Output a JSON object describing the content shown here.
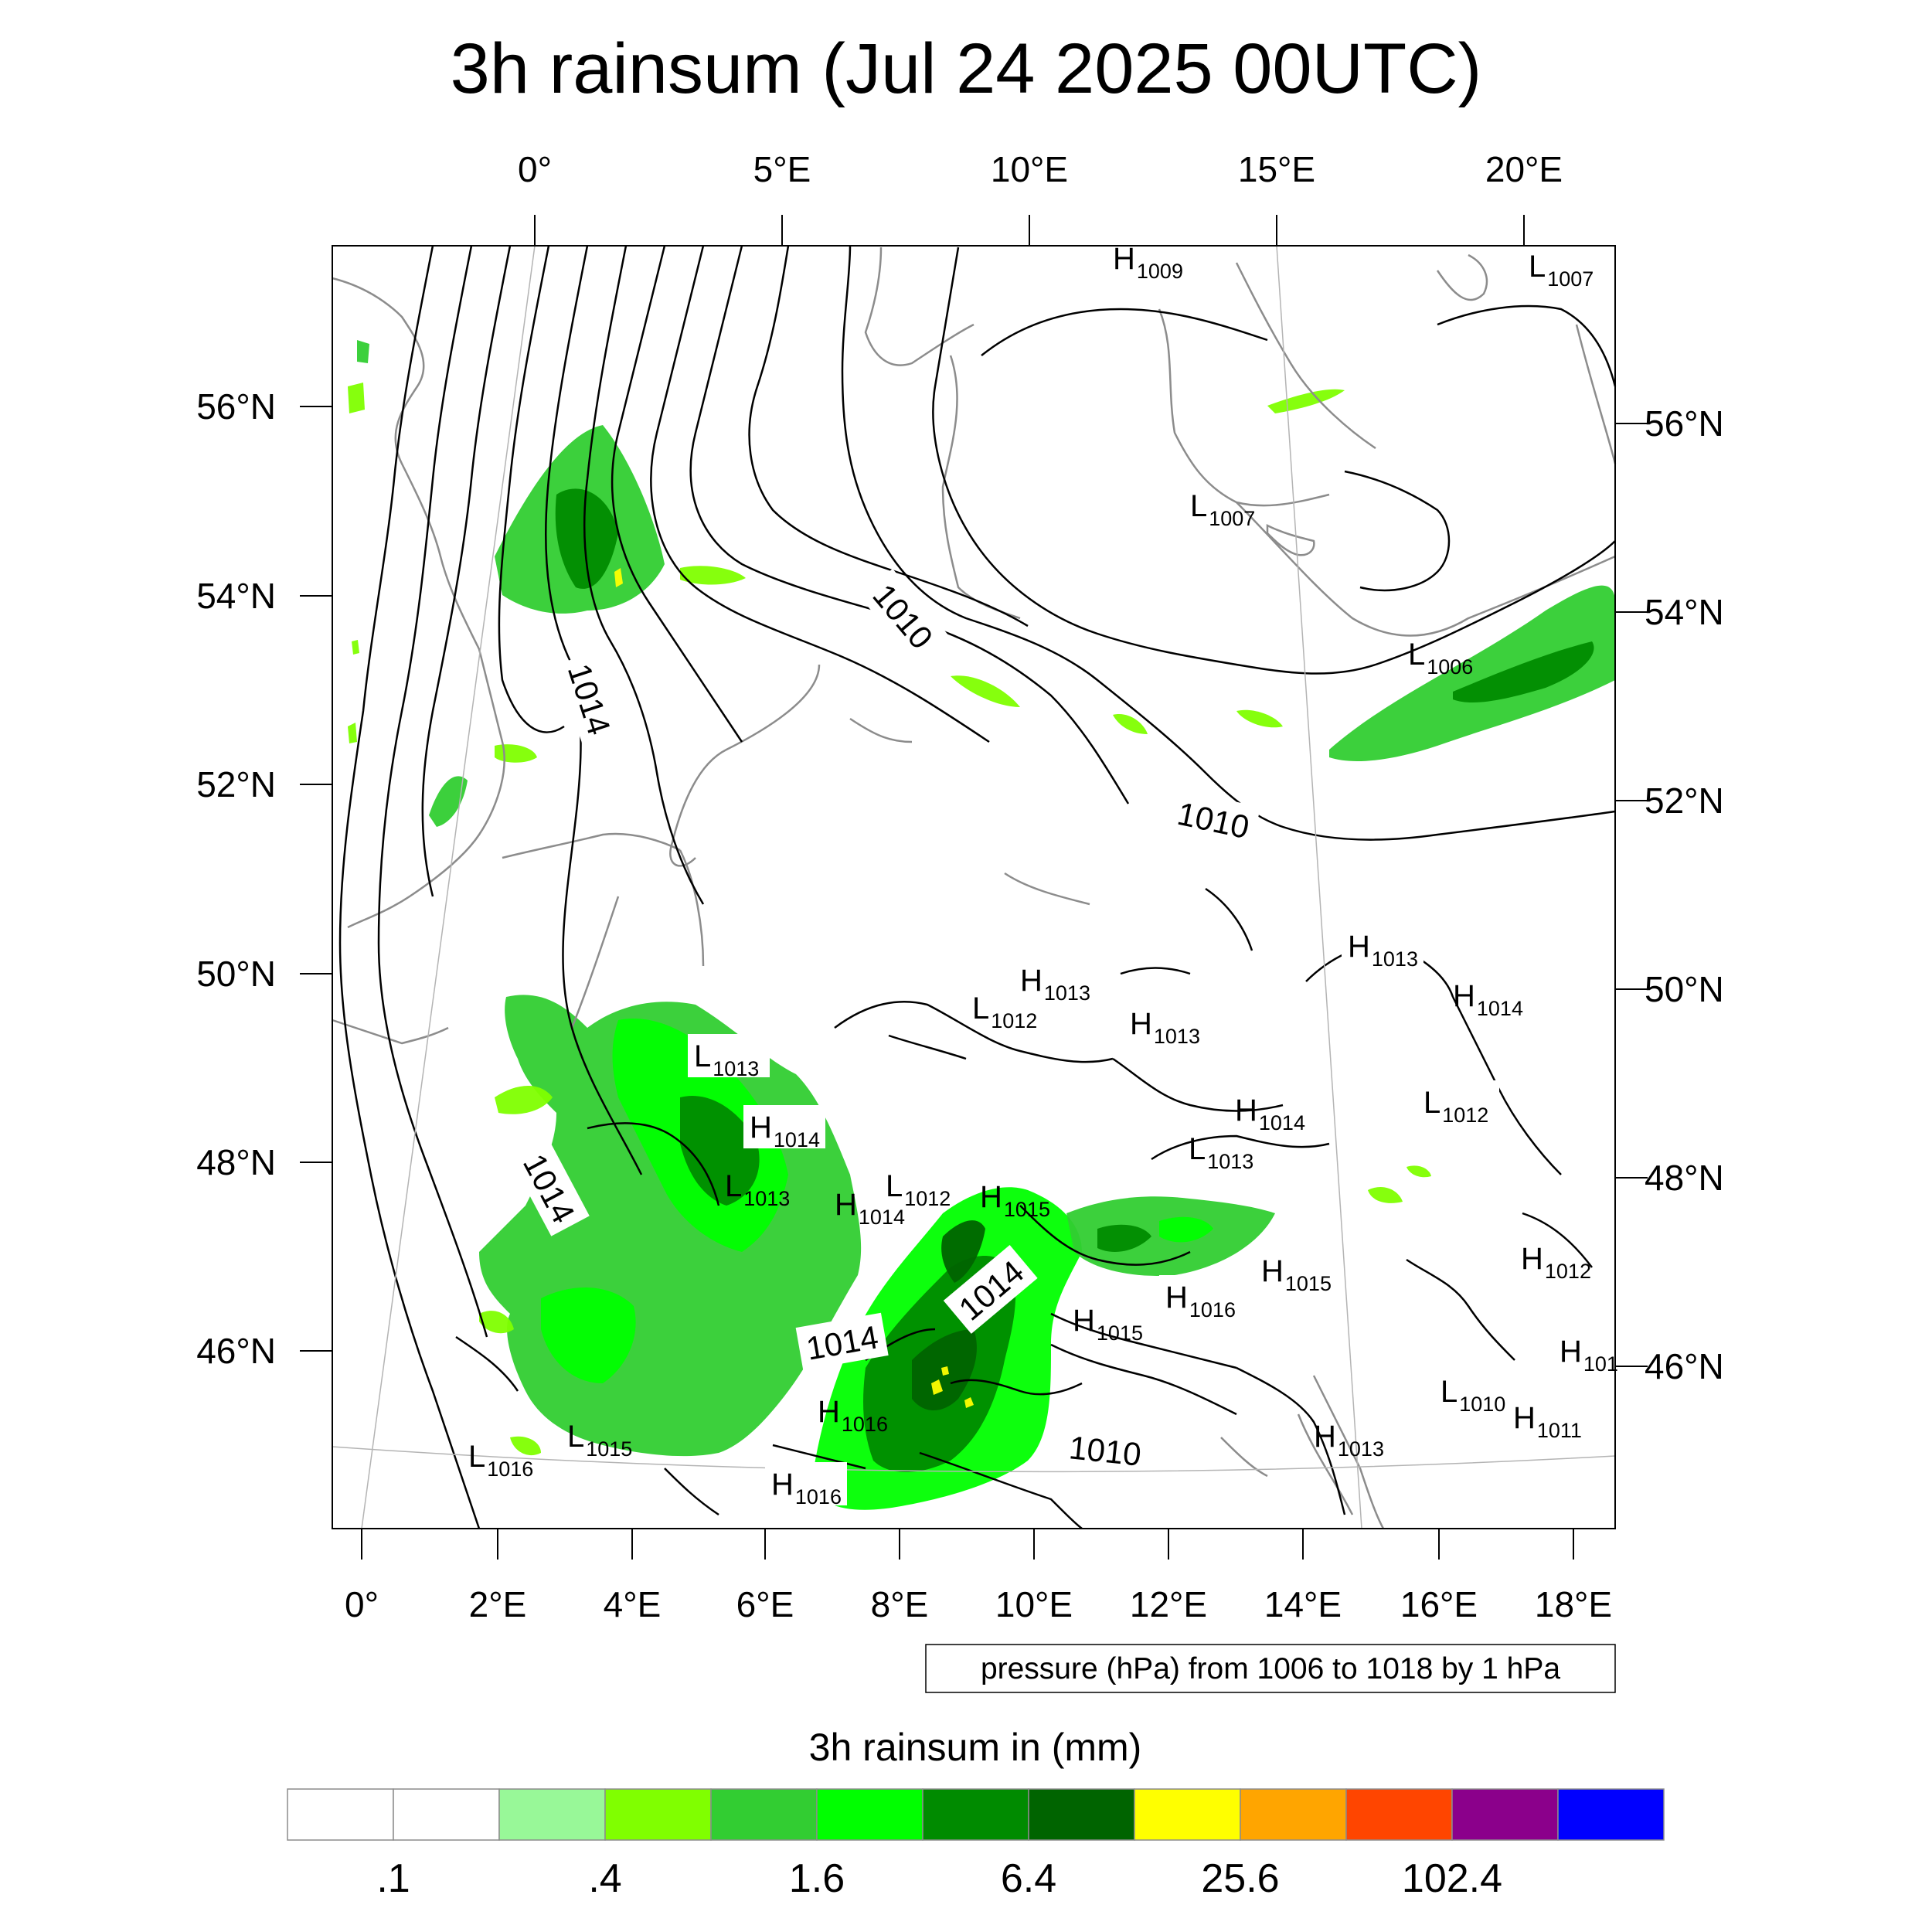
{
  "title": "3h rainsum (Jul 24 2025 00UTC)",
  "top_lon_labels": [
    "0°",
    "5°E",
    "10°E",
    "15°E",
    "20°E"
  ],
  "bottom_lon_labels": [
    "0°",
    "2°E",
    "4°E",
    "6°E",
    "8°E",
    "10°E",
    "12°E",
    "14°E",
    "16°E",
    "18°E"
  ],
  "left_lat_labels": [
    "56°N",
    "54°N",
    "52°N",
    "50°N",
    "48°N",
    "46°N"
  ],
  "right_lat_labels": [
    "56°N",
    "54°N",
    "52°N",
    "50°N",
    "48°N",
    "46°N"
  ],
  "pressure_centers": [
    {
      "t": "H",
      "v": "1009"
    },
    {
      "t": "L",
      "v": "1007"
    },
    {
      "t": "L",
      "v": "1007"
    },
    {
      "t": "L",
      "v": "1006"
    },
    {
      "t": "H",
      "v": "1013"
    },
    {
      "t": "H",
      "v": "1014"
    },
    {
      "t": "H",
      "v": "1013"
    },
    {
      "t": "L",
      "v": "1012"
    },
    {
      "t": "H",
      "v": "1013"
    },
    {
      "t": "L",
      "v": "1013"
    },
    {
      "t": "H",
      "v": "1014"
    },
    {
      "t": "L",
      "v": "1012"
    },
    {
      "t": "L",
      "v": "1013"
    },
    {
      "t": "H",
      "v": "1014"
    },
    {
      "t": "L",
      "v": "1013"
    },
    {
      "t": "L",
      "v": "1012"
    },
    {
      "t": "H",
      "v": "1014"
    },
    {
      "t": "H",
      "v": "1015"
    },
    {
      "t": "H",
      "v": "1012"
    },
    {
      "t": "H",
      "v": "1015"
    },
    {
      "t": "H",
      "v": "1016"
    },
    {
      "t": "H",
      "v": "1015"
    },
    {
      "t": "H",
      "v": "1016"
    },
    {
      "t": "L",
      "v": "1015"
    },
    {
      "t": "L",
      "v": "1016"
    },
    {
      "t": "H",
      "v": "1016"
    },
    {
      "t": "L",
      "v": "1010"
    },
    {
      "t": "H",
      "v": "1011"
    },
    {
      "t": "H",
      "v": "1013"
    },
    {
      "t": "H",
      "v": "101"
    }
  ],
  "isobar_labels": [
    "1014",
    "1010",
    "1010",
    "1014",
    "1014",
    "1014",
    "1010"
  ],
  "legend_note": "pressure (hPa) from 1006 to 1018 by 1 hPa",
  "colorbar": {
    "title": "3h rainsum in (mm)",
    "colors": [
      "#ffffff",
      "#ffffff",
      "#98f898",
      "#80ff00",
      "#32cd32",
      "#00ff00",
      "#008b00",
      "#006400",
      "#ffff00",
      "#ffa500",
      "#ff4500",
      "#8b008b",
      "#0000ff"
    ],
    "labels": [
      ".1",
      ".4",
      "1.6",
      "6.4",
      "25.6",
      "102.4"
    ]
  },
  "colors": {
    "isobar": "#000000",
    "coastline": "#8c8c8c",
    "grid": "#b4b4b4"
  }
}
